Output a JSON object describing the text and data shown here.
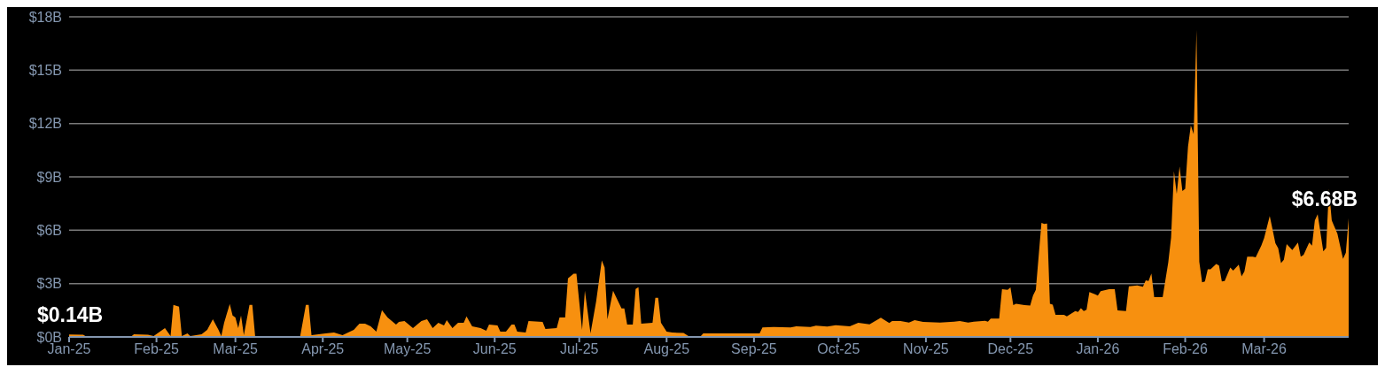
{
  "chart_data": {
    "type": "area",
    "x": [
      "2025-01-01",
      "2025-01-06",
      "2025-01-07",
      "2025-01-23",
      "2025-01-24",
      "2025-01-29",
      "2025-01-31",
      "2025-02-04",
      "2025-02-06",
      "2025-02-07",
      "2025-02-09",
      "2025-02-10",
      "2025-02-12",
      "2025-02-13",
      "2025-02-17",
      "2025-02-19",
      "2025-02-21",
      "2025-02-23",
      "2025-02-24",
      "2025-02-25",
      "2025-02-27",
      "2025-02-28",
      "2025-03-01",
      "2025-03-02",
      "2025-03-03",
      "2025-03-04",
      "2025-03-06",
      "2025-03-07",
      "2025-03-08",
      "2025-03-24",
      "2025-03-26",
      "2025-03-27",
      "2025-03-28",
      "2025-04-02",
      "2025-04-05",
      "2025-04-08",
      "2025-04-12",
      "2025-04-14",
      "2025-04-16",
      "2025-04-18",
      "2025-04-20",
      "2025-04-22",
      "2025-04-24",
      "2025-04-27",
      "2025-04-28",
      "2025-04-30",
      "2025-05-03",
      "2025-05-06",
      "2025-05-08",
      "2025-05-10",
      "2025-05-12",
      "2025-05-14",
      "2025-05-15",
      "2025-05-17",
      "2025-05-19",
      "2025-05-21",
      "2025-05-22",
      "2025-05-24",
      "2025-05-27",
      "2025-05-29",
      "2025-05-30",
      "2025-06-02",
      "2025-06-03",
      "2025-06-05",
      "2025-06-07",
      "2025-06-08",
      "2025-06-09",
      "2025-06-12",
      "2025-06-13",
      "2025-06-18",
      "2025-06-19",
      "2025-06-23",
      "2025-06-24",
      "2025-06-26",
      "2025-06-27",
      "2025-06-29",
      "2025-06-30",
      "2025-07-02",
      "2025-07-03",
      "2025-07-05",
      "2025-07-07",
      "2025-07-09",
      "2025-07-10",
      "2025-07-11",
      "2025-07-13",
      "2025-07-16",
      "2025-07-17",
      "2025-07-18",
      "2025-07-20",
      "2025-07-21",
      "2025-07-22",
      "2025-07-23",
      "2025-07-27",
      "2025-07-28",
      "2025-07-29",
      "2025-07-30",
      "2025-08-01",
      "2025-08-03",
      "2025-08-07",
      "2025-08-09",
      "2025-08-13",
      "2025-08-14",
      "2025-09-03",
      "2025-09-04",
      "2025-09-08",
      "2025-09-14",
      "2025-09-16",
      "2025-09-21",
      "2025-09-23",
      "2025-09-27",
      "2025-09-30",
      "2025-10-05",
      "2025-10-08",
      "2025-10-12",
      "2025-10-16",
      "2025-10-19",
      "2025-10-20",
      "2025-10-23",
      "2025-10-26",
      "2025-10-28",
      "2025-10-31",
      "2025-11-06",
      "2025-11-11",
      "2025-11-13",
      "2025-11-16",
      "2025-11-18",
      "2025-11-22",
      "2025-11-23",
      "2025-11-24",
      "2025-11-27",
      "2025-11-28",
      "2025-11-30",
      "2025-12-01",
      "2025-12-02",
      "2025-12-03",
      "2025-12-06",
      "2025-12-08",
      "2025-12-09",
      "2025-12-10",
      "2025-12-12",
      "2025-12-13",
      "2025-12-14",
      "2025-12-15",
      "2025-12-16",
      "2025-12-17",
      "2025-12-20",
      "2025-12-21",
      "2025-12-24",
      "2025-12-25",
      "2025-12-26",
      "2025-12-27",
      "2025-12-28",
      "2025-12-29",
      "2025-12-31",
      "2026-01-01",
      "2026-01-02",
      "2026-01-05",
      "2026-01-07",
      "2026-01-08",
      "2026-01-11",
      "2026-01-12",
      "2026-01-15",
      "2026-01-17",
      "2026-01-18",
      "2026-01-19",
      "2026-01-20",
      "2026-01-21",
      "2026-01-24",
      "2026-01-26",
      "2026-01-27",
      "2026-01-28",
      "2026-01-29",
      "2026-01-30",
      "2026-01-31",
      "2026-02-01",
      "2026-02-02",
      "2026-02-03",
      "2026-02-04",
      "2026-02-05",
      "2026-02-06",
      "2026-02-07",
      "2026-02-08",
      "2026-02-09",
      "2026-02-10",
      "2026-02-12",
      "2026-02-13",
      "2026-02-14",
      "2026-02-15",
      "2026-02-17",
      "2026-02-18",
      "2026-02-20",
      "2026-02-21",
      "2026-02-22",
      "2026-02-23",
      "2026-02-25",
      "2026-02-26",
      "2026-02-28",
      "2026-03-01",
      "2026-03-03",
      "2026-03-05",
      "2026-03-06",
      "2026-03-07",
      "2026-03-08",
      "2026-03-09",
      "2026-03-11",
      "2026-03-13",
      "2026-03-14",
      "2026-03-15",
      "2026-03-17",
      "2026-03-18",
      "2026-03-19",
      "2026-03-20",
      "2026-03-22",
      "2026-03-23",
      "2026-03-24",
      "2026-03-25",
      "2026-03-27",
      "2026-03-29",
      "2026-03-30",
      "2026-03-31"
    ],
    "series": [
      {
        "color": "#f7900f",
        "values": [
          0.14,
          0.12,
          0.02,
          0.02,
          0.15,
          0.12,
          0.05,
          0.5,
          0.05,
          1.8,
          1.7,
          0.05,
          0.2,
          0.05,
          0.15,
          0.4,
          1.0,
          0.4,
          0.05,
          0.8,
          1.85,
          1.2,
          1.1,
          0.5,
          1.2,
          0.1,
          1.8,
          1.8,
          0.05,
          0.05,
          1.8,
          1.8,
          0.1,
          0.2,
          0.25,
          0.1,
          0.4,
          0.75,
          0.75,
          0.6,
          0.3,
          1.5,
          1.1,
          0.7,
          0.85,
          0.9,
          0.5,
          0.9,
          1.0,
          0.5,
          0.8,
          0.65,
          0.95,
          0.5,
          0.8,
          0.8,
          1.15,
          0.6,
          0.5,
          0.35,
          0.7,
          0.65,
          0.3,
          0.3,
          0.7,
          0.7,
          0.3,
          0.25,
          0.9,
          0.85,
          0.45,
          0.5,
          1.1,
          1.1,
          3.3,
          3.55,
          3.55,
          0.4,
          2.6,
          0.2,
          2.0,
          4.3,
          3.9,
          1.0,
          2.6,
          1.6,
          1.6,
          0.7,
          0.7,
          2.7,
          2.8,
          0.75,
          0.8,
          2.2,
          2.2,
          0.8,
          0.3,
          0.25,
          0.22,
          0.03,
          0.03,
          0.2,
          0.2,
          0.53,
          0.56,
          0.53,
          0.6,
          0.56,
          0.63,
          0.58,
          0.66,
          0.6,
          0.8,
          0.71,
          1.08,
          0.78,
          0.9,
          0.9,
          0.81,
          0.95,
          0.85,
          0.81,
          0.86,
          0.9,
          0.81,
          0.86,
          0.91,
          0.86,
          1.03,
          1.03,
          2.69,
          2.65,
          2.79,
          1.79,
          1.87,
          1.79,
          1.77,
          2.32,
          2.65,
          6.42,
          6.35,
          6.38,
          1.86,
          1.82,
          1.24,
          1.24,
          1.16,
          1.46,
          1.41,
          1.61,
          1.46,
          1.53,
          2.52,
          2.4,
          2.32,
          2.57,
          2.69,
          2.69,
          1.49,
          1.46,
          2.85,
          2.9,
          2.82,
          3.18,
          3.15,
          3.57,
          2.24,
          2.24,
          4.2,
          5.6,
          9.32,
          8.04,
          9.59,
          8.21,
          8.33,
          10.7,
          11.9,
          11.4,
          17.25,
          4.23,
          3.07,
          3.12,
          3.81,
          3.81,
          4.1,
          4.01,
          3.12,
          3.15,
          3.9,
          3.73,
          4.06,
          3.4,
          3.68,
          4.51,
          4.51,
          4.48,
          5.14,
          5.56,
          6.8,
          5.27,
          4.98,
          4.15,
          4.34,
          5.22,
          4.89,
          5.31,
          4.51,
          4.61,
          5.31,
          5.14,
          6.55,
          6.9,
          4.81,
          5.01,
          8.33,
          6.55,
          5.8,
          4.39,
          4.73,
          6.68
        ]
      }
    ],
    "xlim": [
      "2025-01-01",
      "2026-03-31"
    ],
    "xticks": [
      {
        "value": "2025-01-01",
        "label": "Jan-25"
      },
      {
        "value": "2025-02-01",
        "label": "Feb-25"
      },
      {
        "value": "2025-03-01",
        "label": "Mar-25"
      },
      {
        "value": "2025-04-01",
        "label": "Apr-25"
      },
      {
        "value": "2025-05-01",
        "label": "May-25"
      },
      {
        "value": "2025-06-01",
        "label": "Jun-25"
      },
      {
        "value": "2025-07-01",
        "label": "Jul-25"
      },
      {
        "value": "2025-08-01",
        "label": "Aug-25"
      },
      {
        "value": "2025-09-01",
        "label": "Sep-25"
      },
      {
        "value": "2025-10-01",
        "label": "Oct-25"
      },
      {
        "value": "2025-11-01",
        "label": "Nov-25"
      },
      {
        "value": "2025-12-01",
        "label": "Dec-25"
      },
      {
        "value": "2026-01-01",
        "label": "Jan-26"
      },
      {
        "value": "2026-02-01",
        "label": "Feb-26"
      },
      {
        "value": "2026-03-01",
        "label": "Mar-26"
      }
    ],
    "ylim": [
      0,
      18
    ],
    "yticks": [
      {
        "value": 0,
        "label": "$0B"
      },
      {
        "value": 3,
        "label": "$3B"
      },
      {
        "value": 6,
        "label": "$6B"
      },
      {
        "value": 9,
        "label": "$9B"
      },
      {
        "value": 12,
        "label": "$12B"
      },
      {
        "value": 15,
        "label": "$15B"
      },
      {
        "value": 18,
        "label": "$18B"
      }
    ],
    "grid": "y",
    "annotations": [
      {
        "text": "$0.14B",
        "x": "2025-01-01",
        "y": 0.14
      },
      {
        "text": "$6.68B",
        "x": "2026-03-31",
        "y": 6.68
      }
    ]
  }
}
